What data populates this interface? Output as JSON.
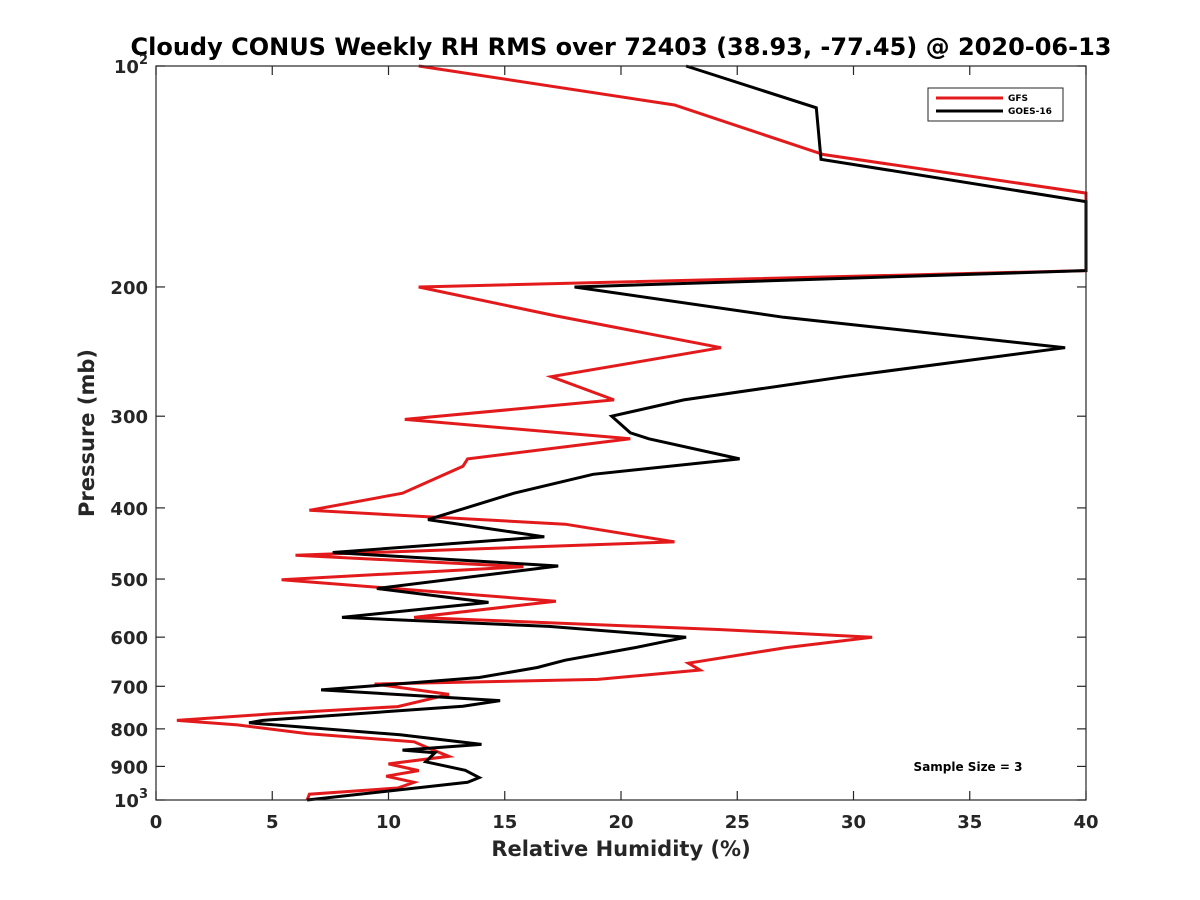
{
  "chart_data": {
    "type": "line",
    "title": "Cloudy CONUS Weekly RH RMS over 72403 (38.93, -77.45) @ 2020-06-13",
    "xlabel": "Relative Humidity (%)",
    "ylabel": "Pressure (mb)",
    "xlim": [
      0,
      40
    ],
    "ylim": [
      100,
      1000
    ],
    "y_scale": "log",
    "y_reversed": true,
    "grid": false,
    "legend_position": "top-right",
    "annotation": "Sample Size = 3",
    "x_ticks": [
      "0",
      "5",
      "10",
      "15",
      "20",
      "25",
      "30",
      "35",
      "40"
    ],
    "y_ticks": [
      {
        "value": 100,
        "label": "10",
        "sup": "2"
      },
      {
        "value": 200,
        "label": "200",
        "sup": ""
      },
      {
        "value": 300,
        "label": "300",
        "sup": ""
      },
      {
        "value": 400,
        "label": "400",
        "sup": ""
      },
      {
        "value": 500,
        "label": "500",
        "sup": ""
      },
      {
        "value": 600,
        "label": "600",
        "sup": ""
      },
      {
        "value": 700,
        "label": "700",
        "sup": ""
      },
      {
        "value": 800,
        "label": "800",
        "sup": ""
      },
      {
        "value": 900,
        "label": "900",
        "sup": ""
      },
      {
        "value": 1000,
        "label": "10",
        "sup": "3"
      }
    ],
    "series": [
      {
        "name": "GFS",
        "color": "#e31a1c",
        "points": [
          [
            11.3,
            100
          ],
          [
            22.3,
            113
          ],
          [
            28.7,
            132
          ],
          [
            40.0,
            149
          ],
          [
            40.0,
            190
          ],
          [
            11.3,
            200
          ],
          [
            17.2,
            219
          ],
          [
            24.3,
            242
          ],
          [
            17.0,
            265
          ],
          [
            19.7,
            285
          ],
          [
            10.7,
            303
          ],
          [
            20.4,
            322
          ],
          [
            13.4,
            343
          ],
          [
            13.2,
            351
          ],
          [
            10.6,
            382
          ],
          [
            6.6,
            403
          ],
          [
            17.6,
            421
          ],
          [
            22.3,
            445
          ],
          [
            6.0,
            464
          ],
          [
            15.8,
            481
          ],
          [
            5.4,
            501
          ],
          [
            17.2,
            536
          ],
          [
            11.1,
            564
          ],
          [
            24.3,
            586
          ],
          [
            30.8,
            600
          ],
          [
            27.1,
            620
          ],
          [
            22.9,
            651
          ],
          [
            23.4,
            665
          ],
          [
            19.0,
            685
          ],
          [
            9.4,
            695
          ],
          [
            12.6,
            718
          ],
          [
            10.4,
            746
          ],
          [
            5.0,
            763
          ],
          [
            0.9,
            779
          ],
          [
            3.5,
            790
          ],
          [
            6.5,
            812
          ],
          [
            11.1,
            833
          ],
          [
            11.8,
            852
          ],
          [
            12.6,
            872
          ],
          [
            10.0,
            893
          ],
          [
            11.3,
            912
          ],
          [
            9.9,
            928
          ],
          [
            11.1,
            946
          ],
          [
            10.4,
            963
          ],
          [
            6.6,
            982
          ],
          [
            6.5,
            1000
          ]
        ]
      },
      {
        "name": "GOES-16",
        "color": "#000000",
        "points": [
          [
            22.8,
            100
          ],
          [
            28.4,
            114
          ],
          [
            28.6,
            134
          ],
          [
            40.0,
            153
          ],
          [
            40.0,
            190
          ],
          [
            18.0,
            200
          ],
          [
            27.0,
            220
          ],
          [
            39.1,
            242
          ],
          [
            29.6,
            265
          ],
          [
            22.7,
            285
          ],
          [
            19.6,
            300
          ],
          [
            20.4,
            316
          ],
          [
            21.2,
            322
          ],
          [
            25.1,
            343
          ],
          [
            18.8,
            360
          ],
          [
            15.4,
            382
          ],
          [
            11.7,
            415
          ],
          [
            16.7,
            438
          ],
          [
            7.6,
            460
          ],
          [
            17.3,
            480
          ],
          [
            9.5,
            515
          ],
          [
            14.3,
            538
          ],
          [
            8.0,
            564
          ],
          [
            16.9,
            580
          ],
          [
            22.8,
            600
          ],
          [
            20.6,
            620
          ],
          [
            17.6,
            645
          ],
          [
            16.4,
            660
          ],
          [
            13.9,
            681
          ],
          [
            7.1,
            708
          ],
          [
            14.8,
            732
          ],
          [
            13.2,
            745
          ],
          [
            4.6,
            779
          ],
          [
            4.0,
            785
          ],
          [
            10.5,
            815
          ],
          [
            14.0,
            840
          ],
          [
            10.6,
            855
          ],
          [
            12.0,
            862
          ],
          [
            11.6,
            887
          ],
          [
            13.3,
            911
          ],
          [
            13.9,
            932
          ],
          [
            13.4,
            946
          ],
          [
            6.5,
            1000
          ]
        ]
      }
    ]
  }
}
